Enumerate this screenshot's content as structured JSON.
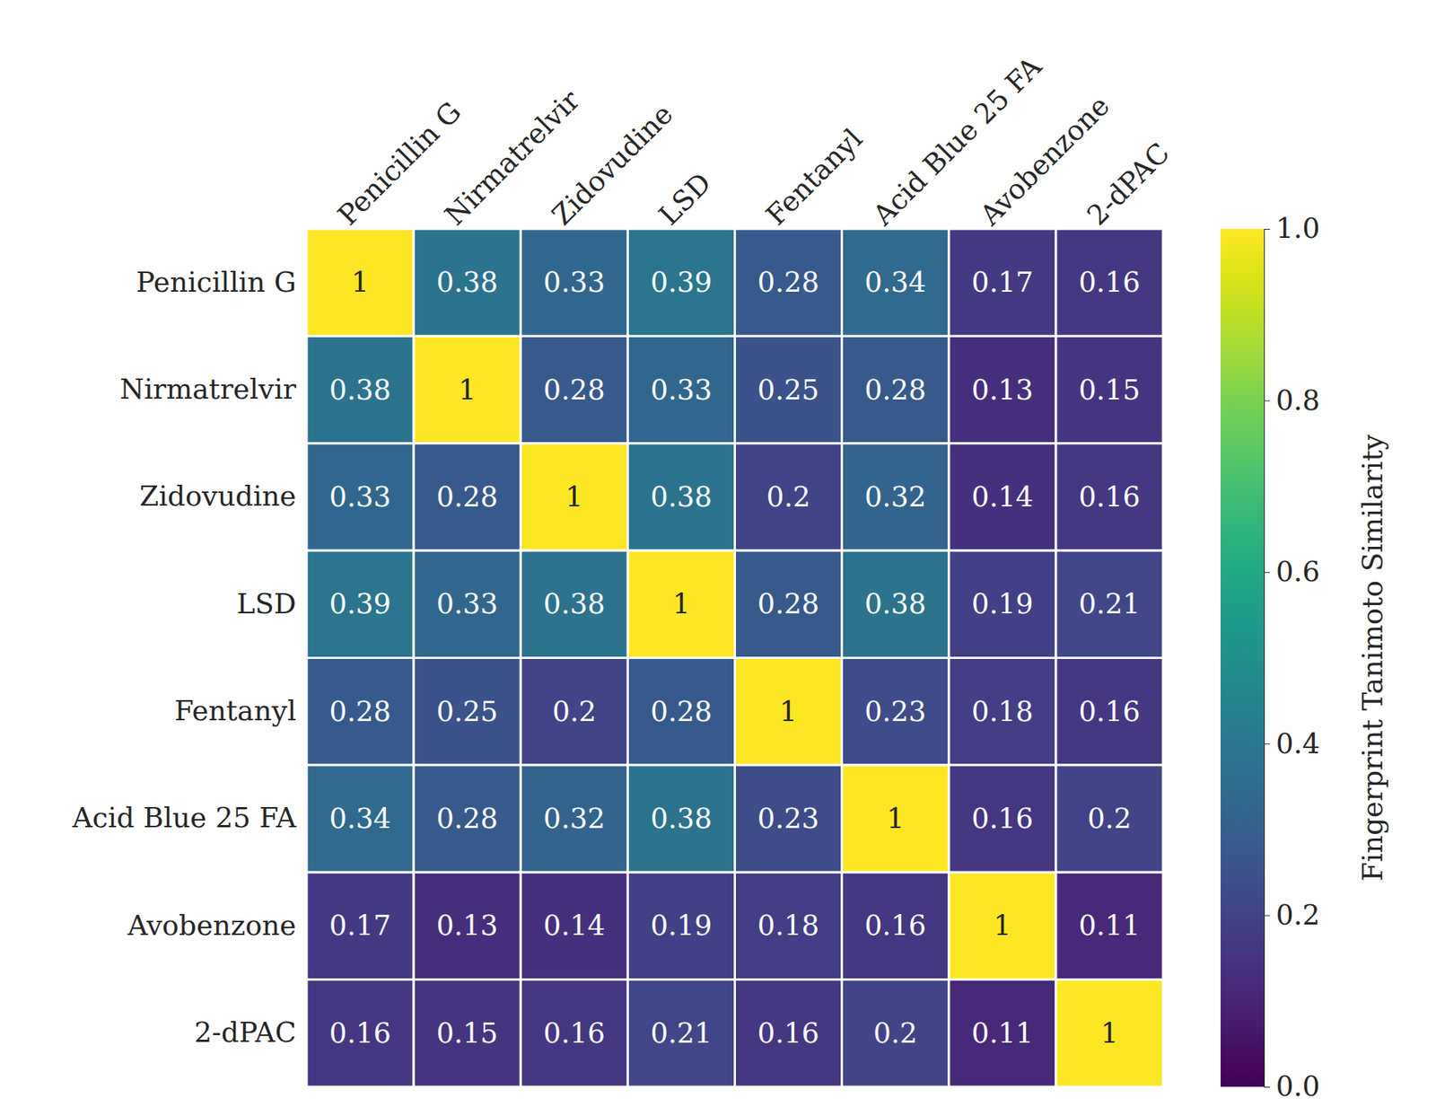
{
  "chart_data": {
    "type": "heatmap",
    "x_categories": [
      "Penicillin G",
      "Nirmatrelvir",
      "Zidovudine",
      "LSD",
      "Fentanyl",
      "Acid Blue 25 FA",
      "Avobenzone",
      "2-dPAC"
    ],
    "y_categories": [
      "Penicillin G",
      "Nirmatrelvir",
      "Zidovudine",
      "LSD",
      "Fentanyl",
      "Acid Blue 25 FA",
      "Avobenzone",
      "2-dPAC"
    ],
    "cells": [
      [
        1,
        0.38,
        0.33,
        0.39,
        0.28,
        0.34,
        0.17,
        0.16
      ],
      [
        0.38,
        1,
        0.28,
        0.33,
        0.25,
        0.28,
        0.13,
        0.15
      ],
      [
        0.33,
        0.28,
        1,
        0.38,
        0.2,
        0.32,
        0.14,
        0.16
      ],
      [
        0.39,
        0.33,
        0.38,
        1,
        0.28,
        0.38,
        0.19,
        0.21
      ],
      [
        0.28,
        0.25,
        0.2,
        0.28,
        1,
        0.23,
        0.18,
        0.16
      ],
      [
        0.34,
        0.28,
        0.32,
        0.38,
        0.23,
        1,
        0.16,
        0.2
      ],
      [
        0.17,
        0.13,
        0.14,
        0.19,
        0.18,
        0.16,
        1,
        0.11
      ],
      [
        0.16,
        0.15,
        0.16,
        0.21,
        0.16,
        0.2,
        0.11,
        1
      ]
    ],
    "data_labels": true,
    "colorbar": {
      "label": "Fingerprint Tanimoto Similarity",
      "range": [
        0,
        1
      ],
      "ticks": [
        {
          "value": 0,
          "label": "0.0"
        },
        {
          "value": 0.2,
          "label": "0.2"
        },
        {
          "value": 0.4,
          "label": "0.4"
        },
        {
          "value": 0.6,
          "label": "0.6"
        },
        {
          "value": 0.8,
          "label": "0.8"
        },
        {
          "value": 1,
          "label": "1.0"
        }
      ]
    }
  }
}
